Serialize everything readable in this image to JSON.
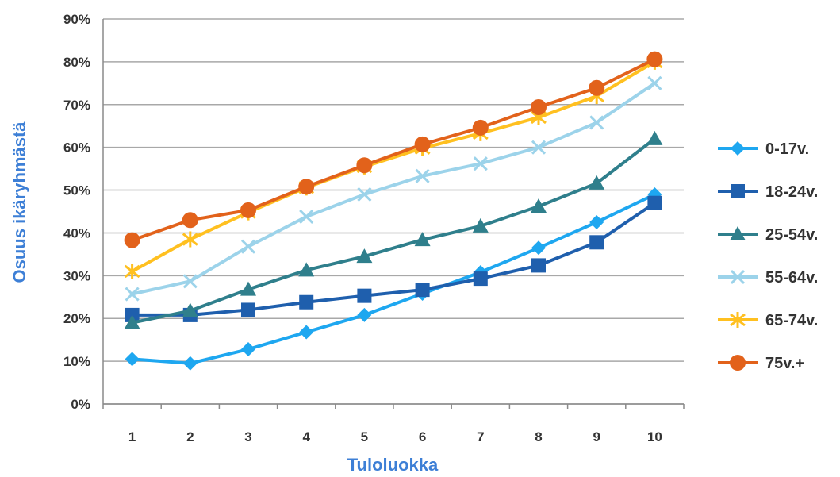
{
  "chart_data": {
    "type": "line",
    "title": "",
    "xlabel": "Tuloluokka",
    "ylabel": "Osuus ikäryhmästä",
    "categories": [
      "1",
      "2",
      "3",
      "4",
      "5",
      "6",
      "7",
      "8",
      "9",
      "10"
    ],
    "ylim": [
      0,
      90
    ],
    "yticks": [
      "0%",
      "10%",
      "20%",
      "30%",
      "40%",
      "50%",
      "60%",
      "70%",
      "80%",
      "90%"
    ],
    "grid": "horizontal",
    "legend_position": "right",
    "series": [
      {
        "name": "0-17v.",
        "color": "#1ea7f0",
        "marker": "diamond",
        "values": [
          10.5,
          9.5,
          12.8,
          16.8,
          20.8,
          25.8,
          30.8,
          36.5,
          42.5,
          49.0
        ]
      },
      {
        "name": "18-24v.",
        "color": "#1f5fad",
        "marker": "square",
        "values": [
          20.8,
          20.8,
          22.0,
          23.8,
          25.3,
          26.7,
          29.3,
          32.4,
          37.8,
          47.0
        ]
      },
      {
        "name": "25-54v.",
        "color": "#2f7f8c",
        "marker": "triangle",
        "values": [
          19.0,
          21.8,
          26.8,
          31.3,
          34.5,
          38.4,
          41.6,
          46.2,
          51.6,
          62.0
        ]
      },
      {
        "name": "55-64v.",
        "color": "#9cd3ea",
        "marker": "x",
        "values": [
          25.7,
          28.7,
          36.8,
          43.8,
          49.0,
          53.3,
          56.2,
          60.0,
          65.8,
          75.0
        ]
      },
      {
        "name": "65-74v.",
        "color": "#ffc020",
        "marker": "star",
        "values": [
          31.0,
          38.5,
          44.8,
          50.6,
          55.5,
          59.8,
          63.3,
          67.0,
          72.0,
          80.0
        ]
      },
      {
        "name": "75v.+",
        "color": "#e2621b",
        "marker": "circle",
        "values": [
          38.3,
          43.0,
          45.3,
          50.8,
          55.8,
          60.7,
          64.6,
          69.4,
          73.9,
          80.6
        ]
      }
    ]
  }
}
